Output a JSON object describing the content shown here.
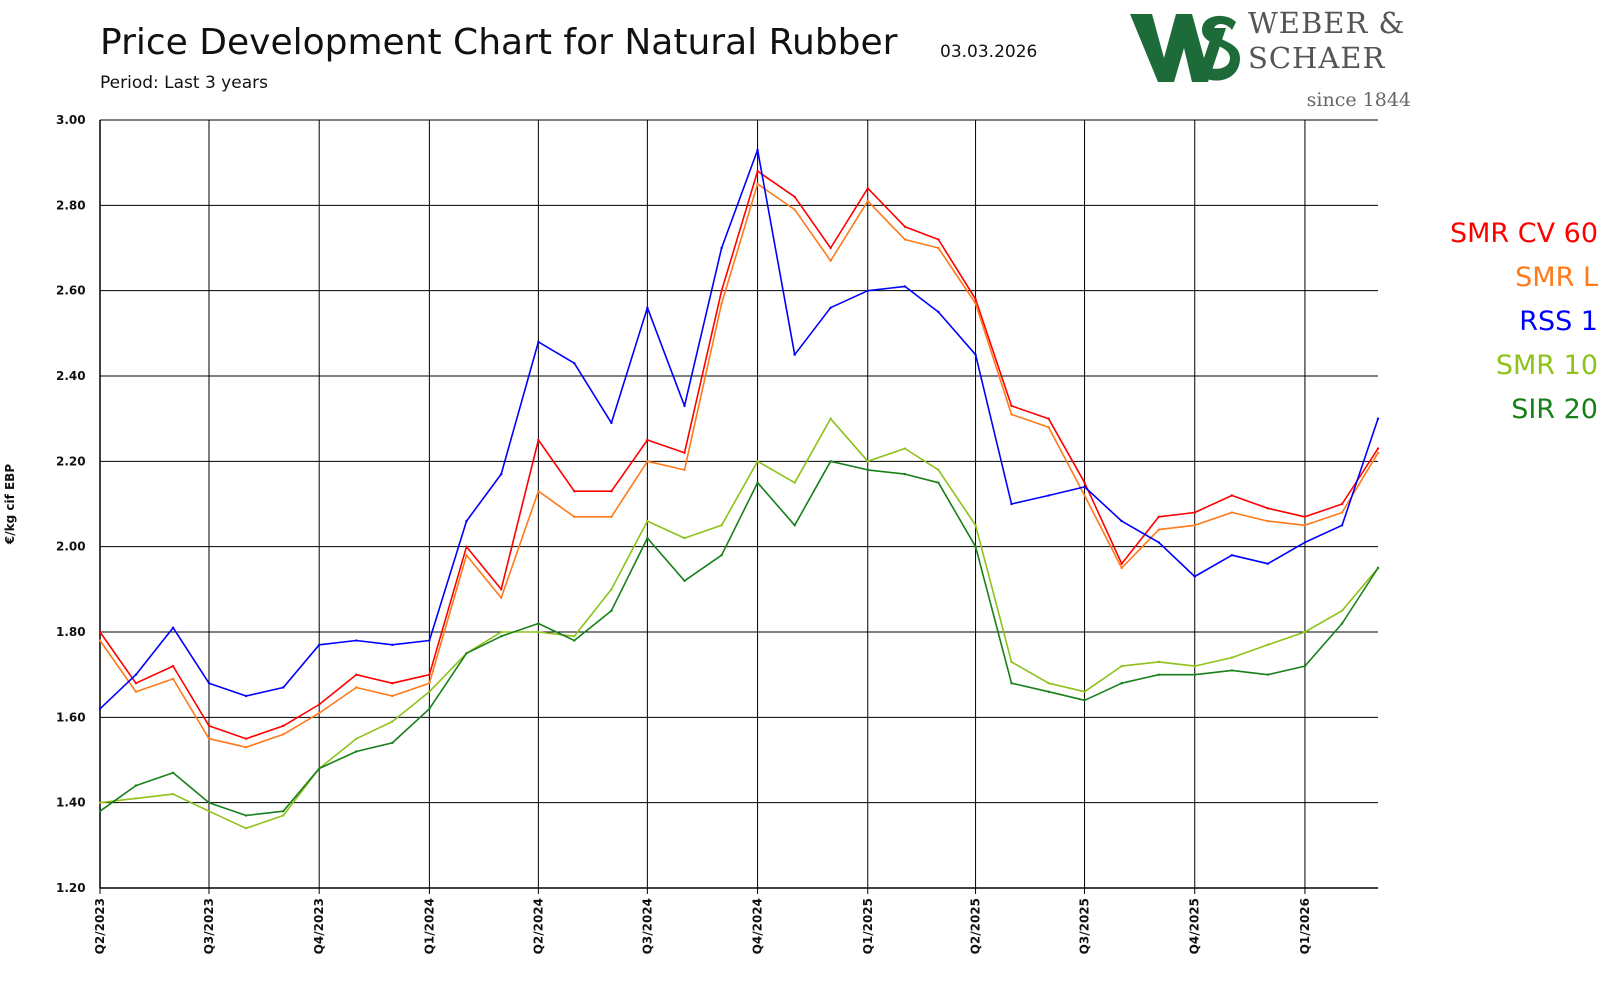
{
  "header": {
    "title": "Price Development Chart for Natural Rubber",
    "date": "03.03.2026",
    "subtitle": "Period: Last 3 years"
  },
  "logo": {
    "line1": "WEBER &",
    "line2": "SCHAER",
    "since": "since 1844",
    "mark_color": "#1e6b3a"
  },
  "chart_data": {
    "type": "line",
    "ylabel": "€/kg cif EBP",
    "ylim": [
      1.2,
      3.0
    ],
    "y_ticks": [
      "1.20",
      "1.40",
      "1.60",
      "1.80",
      "2.00",
      "2.20",
      "2.40",
      "2.60",
      "2.80",
      "3.00"
    ],
    "x_tick_labels": [
      "Q2/2023",
      "Q3/2023",
      "Q4/2023",
      "Q1/2024",
      "Q2/2024",
      "Q3/2024",
      "Q4/2024",
      "Q1/2025",
      "Q2/2025",
      "Q3/2025",
      "Q4/2025",
      "Q1/2026"
    ],
    "x_tick_dates": [
      "2023-04-01",
      "2023-07-01",
      "2023-10-01",
      "2024-01-01",
      "2024-04-01",
      "2024-07-01",
      "2024-10-01",
      "2025-01-01",
      "2025-04-01",
      "2025-07-01",
      "2025-10-01",
      "2026-01-01"
    ],
    "x_range": [
      "2023-04-01",
      "2026-03-03"
    ],
    "grid": true,
    "legend_position": "right",
    "x": [
      "2023-04-01",
      "2023-05-01",
      "2023-06-01",
      "2023-07-01",
      "2023-08-01",
      "2023-09-01",
      "2023-10-01",
      "2023-11-01",
      "2023-12-01",
      "2024-01-01",
      "2024-02-01",
      "2024-03-01",
      "2024-04-01",
      "2024-05-01",
      "2024-06-01",
      "2024-07-01",
      "2024-08-01",
      "2024-09-01",
      "2024-10-01",
      "2024-11-01",
      "2024-12-01",
      "2025-01-01",
      "2025-02-01",
      "2025-03-01",
      "2025-04-01",
      "2025-05-01",
      "2025-06-01",
      "2025-07-01",
      "2025-08-01",
      "2025-09-01",
      "2025-10-01",
      "2025-11-01",
      "2025-12-01",
      "2026-01-01",
      "2026-02-01",
      "2026-03-03"
    ],
    "series": [
      {
        "name": "SMR CV 60",
        "color": "#ff0000",
        "values": [
          1.8,
          1.68,
          1.72,
          1.58,
          1.55,
          1.58,
          1.63,
          1.7,
          1.68,
          1.7,
          2.0,
          1.9,
          2.25,
          2.13,
          2.13,
          2.25,
          2.22,
          2.6,
          2.88,
          2.82,
          2.7,
          2.84,
          2.75,
          2.72,
          2.58,
          2.33,
          2.3,
          2.15,
          1.96,
          2.07,
          2.08,
          2.12,
          2.09,
          2.07,
          2.1,
          2.23
        ]
      },
      {
        "name": "SMR L",
        "color": "#ff7a1a",
        "values": [
          1.78,
          1.66,
          1.69,
          1.55,
          1.53,
          1.56,
          1.61,
          1.67,
          1.65,
          1.68,
          1.98,
          1.88,
          2.13,
          2.07,
          2.07,
          2.2,
          2.18,
          2.57,
          2.85,
          2.79,
          2.67,
          2.81,
          2.72,
          2.7,
          2.57,
          2.31,
          2.28,
          2.12,
          1.95,
          2.04,
          2.05,
          2.08,
          2.06,
          2.05,
          2.08,
          2.22
        ]
      },
      {
        "name": "RSS 1",
        "color": "#0000ff",
        "values": [
          1.62,
          1.7,
          1.81,
          1.68,
          1.65,
          1.67,
          1.77,
          1.78,
          1.77,
          1.78,
          2.06,
          2.17,
          2.48,
          2.43,
          2.29,
          2.56,
          2.33,
          2.7,
          2.93,
          2.45,
          2.56,
          2.6,
          2.61,
          2.55,
          2.45,
          2.1,
          2.12,
          2.14,
          2.06,
          2.01,
          1.93,
          1.98,
          1.96,
          2.01,
          2.05,
          2.3
        ]
      },
      {
        "name": "SMR 10",
        "color": "#8ec21a",
        "values": [
          1.4,
          1.41,
          1.42,
          1.38,
          1.34,
          1.37,
          1.48,
          1.55,
          1.59,
          1.66,
          1.75,
          1.8,
          1.8,
          1.79,
          1.9,
          2.06,
          2.02,
          2.05,
          2.2,
          2.15,
          2.3,
          2.2,
          2.23,
          2.18,
          2.05,
          1.73,
          1.68,
          1.66,
          1.72,
          1.73,
          1.72,
          1.74,
          1.77,
          1.8,
          1.85,
          1.95
        ]
      },
      {
        "name": "SIR 20",
        "color": "#17801a",
        "values": [
          1.38,
          1.44,
          1.47,
          1.4,
          1.37,
          1.38,
          1.48,
          1.52,
          1.54,
          1.62,
          1.75,
          1.79,
          1.82,
          1.78,
          1.85,
          2.02,
          1.92,
          1.98,
          2.15,
          2.05,
          2.2,
          2.18,
          2.17,
          2.15,
          2.0,
          1.68,
          1.66,
          1.64,
          1.68,
          1.7,
          1.7,
          1.71,
          1.7,
          1.72,
          1.82,
          1.95
        ]
      }
    ]
  }
}
